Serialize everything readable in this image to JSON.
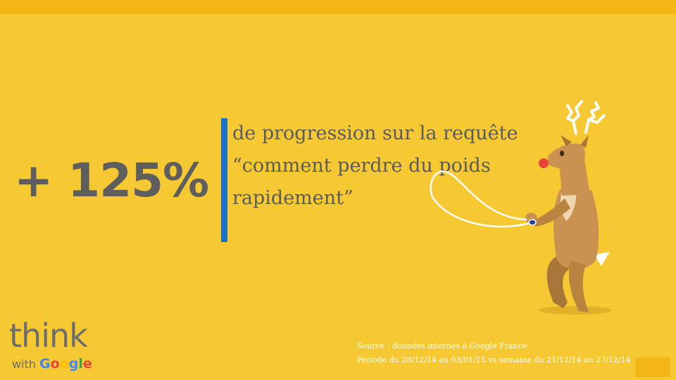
{
  "slide": {
    "stat": "+ 125%",
    "description_lines": [
      "de progression sur la requête",
      "“comment perdre du poids",
      "rapidement”"
    ],
    "source_lines": [
      "Source : données internes à Google France",
      "Période du 28/12/14 au 03/01/15 vs semaine du 21/12/14 au 27/12/14"
    ]
  },
  "logo": {
    "think": "think",
    "with": "with",
    "google_letters": [
      "G",
      "o",
      "o",
      "g",
      "l",
      "e"
    ]
  },
  "colors": {
    "background": "#f6c933",
    "accent_bar": "#1c6fc7",
    "stat_text": "#5e5e5e",
    "top_band": "#f2b617"
  },
  "illustration": {
    "icon": "reindeer-jump-rope-icon"
  }
}
